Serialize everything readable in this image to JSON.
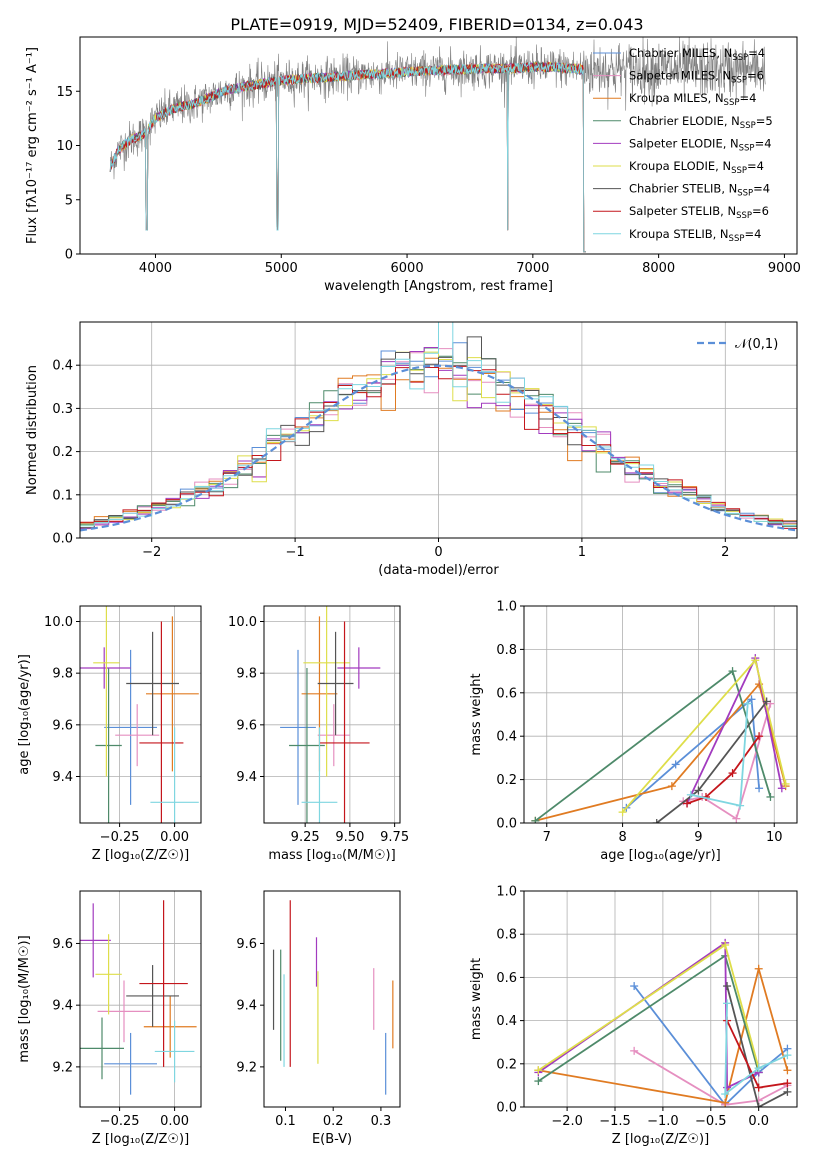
{
  "title": "PLATE=0919, MJD=52409, FIBERID=0134, z=0.043",
  "colors": {
    "Chabrier MILES": "#5b8fd8",
    "Salpeter MILES": "#e58fc0",
    "Kroupa MILES": "#e07b22",
    "Chabrier ELODIE": "#4e8a6a",
    "Salpeter ELODIE": "#a23bbf",
    "Kroupa ELODIE": "#dede4a",
    "Chabrier STELIB": "#555555",
    "Salpeter STELIB": "#c4161c",
    "Kroupa STELIB": "#7fd6e0"
  },
  "chart_data": [
    {
      "id": "spectrum",
      "type": "line",
      "xlabel": "wavelength [Angstrom, rest frame]",
      "ylabel": "Flux [fλ10⁻¹⁷ erg cm⁻² s⁻¹ A⁻¹]",
      "xlim": [
        3400,
        9100
      ],
      "ylim": [
        0,
        20
      ],
      "xticks": [
        4000,
        5000,
        6000,
        7000,
        8000,
        9000
      ],
      "yticks": [
        0,
        5,
        10,
        15
      ],
      "grid": false,
      "legend_position": "top-right",
      "continuum": {
        "x": [
          3640,
          3700,
          3800,
          3900,
          4000,
          4100,
          4200,
          4300,
          4400,
          4500,
          4600,
          4800,
          5000,
          5200,
          5400,
          5600,
          5800,
          6000,
          6200,
          6400,
          6600,
          6800,
          7000,
          7200,
          7400
        ],
        "y": [
          8.0,
          9.5,
          10.5,
          11.0,
          12.5,
          13.2,
          13.6,
          13.8,
          14.3,
          14.8,
          15.2,
          15.6,
          16.0,
          16.2,
          16.3,
          16.5,
          16.6,
          16.8,
          16.9,
          17.0,
          17.1,
          17.1,
          17.2,
          17.2,
          17.0
        ]
      },
      "data_range": [
        3640,
        8850
      ],
      "model_range": [
        3640,
        7420
      ],
      "legend": [
        {
          "name": "Chabrier MILES",
          "label": "Chabrier MILES, N",
          "sub": "SSP",
          "n": "=4"
        },
        {
          "name": "Salpeter MILES",
          "label": "Salpeter MILES, N",
          "sub": "SSP",
          "n": "=6"
        },
        {
          "name": "Kroupa MILES",
          "label": "Kroupa MILES, N",
          "sub": "SSP",
          "n": "=4"
        },
        {
          "name": "Chabrier ELODIE",
          "label": "Chabrier ELODIE, N",
          "sub": "SSP",
          "n": "=5"
        },
        {
          "name": "Salpeter ELODIE",
          "label": "Salpeter ELODIE, N",
          "sub": "SSP",
          "n": "=4"
        },
        {
          "name": "Kroupa ELODIE",
          "label": "Kroupa ELODIE, N",
          "sub": "SSP",
          "n": "=4"
        },
        {
          "name": "Chabrier STELIB",
          "label": "Chabrier STELIB, N",
          "sub": "SSP",
          "n": "=4"
        },
        {
          "name": "Salpeter STELIB",
          "label": "Salpeter STELIB, N",
          "sub": "SSP",
          "n": "=6"
        },
        {
          "name": "Kroupa STELIB",
          "label": "Kroupa STELIB, N",
          "sub": "SSP",
          "n": "=4"
        }
      ]
    },
    {
      "id": "residuals",
      "type": "line",
      "xlabel": "(data-model)/error",
      "ylabel": "Normed distribution",
      "xlim": [
        -2.5,
        2.5
      ],
      "ylim": [
        0,
        0.5
      ],
      "xticks": [
        -2,
        -1,
        0,
        1,
        2
      ],
      "yticks": [
        0.0,
        0.1,
        0.2,
        0.3,
        0.4
      ],
      "grid": true,
      "bin_width": 0.1,
      "legend": [
        {
          "label": "𝒩(0,1)",
          "color": "#5b8fd8",
          "style": "dashed"
        }
      ]
    },
    {
      "id": "age_vs_Z",
      "type": "scatter",
      "xlabel": "Z [log₁₀(Z/Z☉)]",
      "ylabel": "age  [log₁₀(age/yr)]",
      "xlim": [
        -0.43,
        0.12
      ],
      "ylim": [
        9.22,
        10.06
      ],
      "xticks": [
        -0.25,
        0.0
      ],
      "xtick_labels": [
        "−0.25",
        "0.00"
      ],
      "yticks": [
        9.4,
        9.6,
        9.8,
        10.0
      ],
      "grid": true,
      "points": [
        {
          "name": "Chabrier MILES",
          "x": -0.2,
          "xerr": 0.12,
          "y": 9.59,
          "yerr": 0.3
        },
        {
          "name": "Salpeter MILES",
          "x": -0.17,
          "xerr": 0.1,
          "y": 9.56,
          "yerr": 0.12
        },
        {
          "name": "Kroupa MILES",
          "x": -0.01,
          "xerr": 0.12,
          "y": 9.72,
          "yerr": 0.3
        },
        {
          "name": "Chabrier ELODIE",
          "x": -0.3,
          "xerr": 0.06,
          "y": 9.52,
          "yerr": 0.3
        },
        {
          "name": "Salpeter ELODIE",
          "x": -0.32,
          "xerr": 0.12,
          "y": 9.82,
          "yerr": 0.08
        },
        {
          "name": "Kroupa ELODIE",
          "x": -0.31,
          "xerr": 0.06,
          "y": 9.84,
          "yerr": 0.44
        },
        {
          "name": "Chabrier STELIB",
          "x": -0.1,
          "xerr": 0.12,
          "y": 9.76,
          "yerr": 0.2
        },
        {
          "name": "Salpeter STELIB",
          "x": -0.06,
          "xerr": 0.1,
          "y": 9.53,
          "yerr": 0.47
        },
        {
          "name": "Kroupa STELIB",
          "x": 0.0,
          "xerr": 0.11,
          "y": 9.3,
          "yerr": 0.29
        }
      ]
    },
    {
      "id": "age_vs_mass",
      "type": "scatter",
      "xlabel": "mass [log₁₀(M/M☉)]",
      "ylabel": "",
      "xlim": [
        9.02,
        9.78
      ],
      "ylim": [
        9.22,
        10.06
      ],
      "xticks": [
        9.25,
        9.5,
        9.75
      ],
      "xtick_labels": [
        "9.25",
        "9.50",
        "9.75"
      ],
      "yticks": [
        9.4,
        9.6,
        9.8,
        10.0
      ],
      "grid": true,
      "points": [
        {
          "name": "Chabrier MILES",
          "x": 9.21,
          "xerr": 0.1,
          "y": 9.59,
          "yerr": 0.3
        },
        {
          "name": "Salpeter MILES",
          "x": 9.41,
          "xerr": 0.09,
          "y": 9.56,
          "yerr": 0.12
        },
        {
          "name": "Kroupa MILES",
          "x": 9.33,
          "xerr": 0.1,
          "y": 9.72,
          "yerr": 0.3
        },
        {
          "name": "Chabrier ELODIE",
          "x": 9.26,
          "xerr": 0.1,
          "y": 9.52,
          "yerr": 0.3
        },
        {
          "name": "Salpeter ELODIE",
          "x": 9.55,
          "xerr": 0.12,
          "y": 9.82,
          "yerr": 0.08
        },
        {
          "name": "Kroupa ELODIE",
          "x": 9.37,
          "xerr": 0.13,
          "y": 9.84,
          "yerr": 0.44
        },
        {
          "name": "Chabrier STELIB",
          "x": 9.42,
          "xerr": 0.1,
          "y": 9.76,
          "yerr": 0.2
        },
        {
          "name": "Salpeter STELIB",
          "x": 9.47,
          "xerr": 0.14,
          "y": 9.53,
          "yerr": 0.47
        },
        {
          "name": "Kroupa STELIB",
          "x": 9.33,
          "xerr": 0.1,
          "y": 9.3,
          "yerr": 0.29
        }
      ]
    },
    {
      "id": "mass_weight_vs_age",
      "type": "line",
      "xlabel": "age  [log₁₀(age/yr)]",
      "ylabel": "mass weight",
      "xlim": [
        6.7,
        10.3
      ],
      "ylim": [
        0,
        1
      ],
      "xticks": [
        7,
        8,
        9,
        10
      ],
      "yticks": [
        0.0,
        0.2,
        0.4,
        0.6,
        0.8,
        1.0
      ],
      "grid": true,
      "series": [
        {
          "name": "Chabrier MILES",
          "x": [
            8.05,
            8.7,
            9.7,
            9.8
          ],
          "y": [
            0.07,
            0.27,
            0.57,
            0.16
          ]
        },
        {
          "name": "Salpeter MILES",
          "x": [
            8.8,
            9.05,
            9.5,
            9.95
          ],
          "y": [
            0.1,
            0.12,
            0.02,
            0.55
          ]
        },
        {
          "name": "Kroupa MILES",
          "x": [
            6.85,
            8.65,
            9.8,
            10.15
          ],
          "y": [
            0.01,
            0.17,
            0.64,
            0.17
          ]
        },
        {
          "name": "Chabrier ELODIE",
          "x": [
            6.85,
            9.45,
            9.95
          ],
          "y": [
            0.01,
            0.7,
            0.12
          ]
        },
        {
          "name": "Salpeter ELODIE",
          "x": [
            8.85,
            9.75,
            10.1
          ],
          "y": [
            0.09,
            0.76,
            0.16
          ]
        },
        {
          "name": "Kroupa ELODIE",
          "x": [
            8.0,
            9.75,
            10.15
          ],
          "y": [
            0.05,
            0.75,
            0.18
          ]
        },
        {
          "name": "Chabrier STELIB",
          "x": [
            8.45,
            9.0,
            9.9
          ],
          "y": [
            0.0,
            0.15,
            0.56
          ]
        },
        {
          "name": "Salpeter STELIB",
          "x": [
            8.85,
            9.1,
            9.45,
            9.8
          ],
          "y": [
            0.09,
            0.12,
            0.23,
            0.4
          ]
        },
        {
          "name": "Kroupa STELIB",
          "x": [
            8.9,
            9.55,
            9.65
          ],
          "y": [
            0.13,
            0.08,
            0.55
          ]
        }
      ]
    },
    {
      "id": "mass_vs_Z",
      "type": "scatter",
      "xlabel": "Z [log₁₀(Z/Z☉)]",
      "ylabel": "mass [log₁₀(M/M☉)]",
      "xlim": [
        -0.43,
        0.12
      ],
      "ylim": [
        9.07,
        9.77
      ],
      "xticks": [
        -0.25,
        0.0
      ],
      "xtick_labels": [
        "−0.25",
        "0.00"
      ],
      "yticks": [
        9.2,
        9.4,
        9.6
      ],
      "grid": true,
      "points": [
        {
          "name": "Chabrier MILES",
          "x": -0.2,
          "xerr": 0.12,
          "y": 9.21,
          "yerr": 0.1
        },
        {
          "name": "Salpeter MILES",
          "x": -0.23,
          "xerr": 0.12,
          "y": 9.38,
          "yerr": 0.1
        },
        {
          "name": "Kroupa MILES",
          "x": -0.02,
          "xerr": 0.12,
          "y": 9.33,
          "yerr": 0.1
        },
        {
          "name": "Chabrier ELODIE",
          "x": -0.33,
          "xerr": 0.1,
          "y": 9.26,
          "yerr": 0.1
        },
        {
          "name": "Salpeter ELODIE",
          "x": -0.37,
          "xerr": 0.08,
          "y": 9.61,
          "yerr": 0.12
        },
        {
          "name": "Kroupa ELODIE",
          "x": -0.3,
          "xerr": 0.06,
          "y": 9.5,
          "yerr": 0.13
        },
        {
          "name": "Chabrier STELIB",
          "x": -0.1,
          "xerr": 0.12,
          "y": 9.43,
          "yerr": 0.1
        },
        {
          "name": "Salpeter STELIB",
          "x": -0.05,
          "xerr": 0.11,
          "y": 9.47,
          "yerr": 0.27
        },
        {
          "name": "Kroupa STELIB",
          "x": -0.0,
          "xerr": 0.09,
          "y": 9.25,
          "yerr": 0.1
        }
      ]
    },
    {
      "id": "mass_vs_ebv",
      "type": "scatter",
      "xlabel": "E(B-V)",
      "ylabel": "",
      "xlim": [
        0.055,
        0.34
      ],
      "ylim": [
        9.07,
        9.77
      ],
      "xticks": [
        0.1,
        0.2,
        0.3
      ],
      "xtick_labels": [
        "0.1",
        "0.2",
        "0.3"
      ],
      "yticks": [
        9.2,
        9.4,
        9.6
      ],
      "grid": false,
      "points": [
        {
          "name": "Chabrier MILES",
          "x": 0.31,
          "xerr": 0,
          "y": 9.21,
          "yerr": 0.1
        },
        {
          "name": "Salpeter MILES",
          "x": 0.285,
          "xerr": 0,
          "y": 9.42,
          "yerr": 0.1
        },
        {
          "name": "Kroupa MILES",
          "x": 0.325,
          "xerr": 0,
          "y": 9.37,
          "yerr": 0.11
        },
        {
          "name": "Chabrier ELODIE",
          "x": 0.09,
          "xerr": 0,
          "y": 9.4,
          "yerr": 0.18
        },
        {
          "name": "Salpeter ELODIE",
          "x": 0.165,
          "xerr": 0,
          "y": 9.54,
          "yerr": 0.08
        },
        {
          "name": "Kroupa ELODIE",
          "x": 0.168,
          "xerr": 0,
          "y": 9.36,
          "yerr": 0.15
        },
        {
          "name": "Chabrier STELIB",
          "x": 0.075,
          "xerr": 0,
          "y": 9.45,
          "yerr": 0.13
        },
        {
          "name": "Salpeter STELIB",
          "x": 0.11,
          "xerr": 0,
          "y": 9.47,
          "yerr": 0.27
        },
        {
          "name": "Kroupa STELIB",
          "x": 0.097,
          "xerr": 0,
          "y": 9.35,
          "yerr": 0.15
        }
      ]
    },
    {
      "id": "mass_weight_vs_Z",
      "type": "line",
      "xlabel": "Z [log₁₀(Z/Z☉)]",
      "ylabel": "mass weight",
      "xlim": [
        -2.45,
        0.4
      ],
      "ylim": [
        0,
        1
      ],
      "xticks": [
        -2.0,
        -1.5,
        -1.0,
        -0.5,
        0.0
      ],
      "xtick_labels": [
        "−2.0",
        "−1.5",
        "−1.0",
        "−0.5",
        "0.0"
      ],
      "yticks": [
        0.0,
        0.2,
        0.4,
        0.6,
        0.8,
        1.0
      ],
      "grid": true,
      "series": [
        {
          "name": "Chabrier MILES",
          "x": [
            -1.3,
            -0.35,
            0.0,
            0.3
          ],
          "y": [
            0.56,
            0.01,
            0.16,
            0.27
          ]
        },
        {
          "name": "Salpeter MILES",
          "x": [
            -1.3,
            -0.35,
            0.0,
            0.3
          ],
          "y": [
            0.26,
            0.01,
            0.03,
            0.1
          ]
        },
        {
          "name": "Kroupa MILES",
          "x": [
            -2.3,
            -0.35,
            0.0,
            0.3
          ],
          "y": [
            0.17,
            0.02,
            0.64,
            0.17
          ]
        },
        {
          "name": "Chabrier ELODIE",
          "x": [
            -2.3,
            -0.35,
            0.0
          ],
          "y": [
            0.12,
            0.7,
            0.16
          ]
        },
        {
          "name": "Salpeter ELODIE",
          "x": [
            -2.3,
            -0.35,
            -0.33,
            0.0
          ],
          "y": [
            0.16,
            0.76,
            0.09,
            0.16
          ]
        },
        {
          "name": "Kroupa ELODIE",
          "x": [
            -2.3,
            -0.35,
            0.0
          ],
          "y": [
            0.17,
            0.75,
            0.18
          ]
        },
        {
          "name": "Chabrier STELIB",
          "x": [
            -0.33,
            0.0,
            0.3
          ],
          "y": [
            0.56,
            0.0,
            0.07
          ]
        },
        {
          "name": "Salpeter STELIB",
          "x": [
            -0.33,
            0.0,
            0.3
          ],
          "y": [
            0.4,
            0.09,
            0.11
          ]
        },
        {
          "name": "Kroupa STELIB",
          "x": [
            -0.33,
            -0.35,
            0.0,
            0.3
          ],
          "y": [
            0.48,
            0.06,
            0.18,
            0.24
          ]
        }
      ]
    }
  ]
}
